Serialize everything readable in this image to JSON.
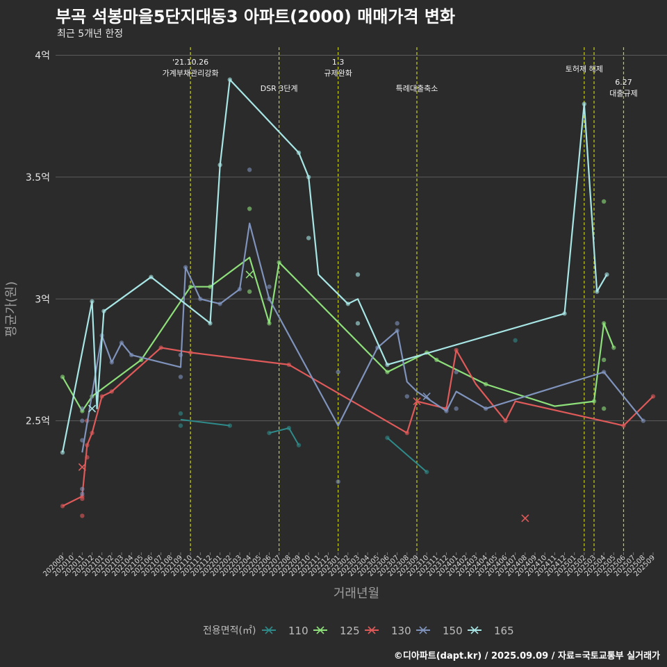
{
  "header": {
    "title": "부곡 석봉마을5단지대동3 아파트(2000) 매매가격 변화",
    "subtitle": "최근 5개년 한정"
  },
  "caption": "©디아파트(dapt.kr) / 2025.09.09 / 자료=국토교통부 실거래가",
  "chart_data": {
    "type": "line",
    "title": "부곡 석봉마을5단지대동3 아파트(2000) 매매가격 변화",
    "subtitle": "최근 5개년 한정",
    "xlabel": "거래년월",
    "ylabel": "평균가(원)",
    "categories": [
      "202009",
      "202010",
      "202011",
      "202012",
      "202101",
      "202102",
      "202103",
      "202104",
      "202105",
      "202106",
      "202107",
      "202108",
      "202109",
      "202110",
      "202111",
      "202112",
      "202201",
      "202202",
      "202203",
      "202204",
      "202205",
      "202206",
      "202207",
      "202208",
      "202209",
      "202210",
      "202211",
      "202212",
      "202301",
      "202302",
      "202303",
      "202304",
      "202305",
      "202306",
      "202307",
      "202308",
      "202309",
      "202310",
      "202311",
      "202312",
      "202401",
      "202402",
      "202403",
      "202404",
      "202405",
      "202406",
      "202407",
      "202408",
      "202409",
      "202410",
      "202411",
      "202412",
      "202501",
      "202502",
      "202503",
      "202504",
      "202505",
      "202506",
      "202507",
      "202508",
      "202509"
    ],
    "y_ticks": [
      {
        "value": 2.5,
        "label": "2.5억"
      },
      {
        "value": 3.0,
        "label": "3억"
      },
      {
        "value": 3.5,
        "label": "3.5억"
      },
      {
        "value": 4.0,
        "label": "4억"
      }
    ],
    "ylim": [
      1.96,
      4.05
    ],
    "grid": true,
    "legend": {
      "title": "전용면적(㎡)",
      "position": "bottom"
    },
    "events": [
      {
        "x": 13,
        "label_lines": [
          "'21.10.26",
          "가계부채관리강화"
        ],
        "level": "high"
      },
      {
        "x": 22,
        "label_lines": [
          "DSR 3단계"
        ],
        "level": "low"
      },
      {
        "x": 28,
        "label_lines": [
          "1.3",
          "규제완화"
        ],
        "level": "high"
      },
      {
        "x": 36,
        "label_lines": [
          "특례대출축소"
        ],
        "level": "low"
      },
      {
        "x": 53,
        "label_lines": [
          "토허제 해제"
        ],
        "level": "mid"
      },
      {
        "x": 54,
        "label_lines": [],
        "level": "none"
      },
      {
        "x": 57,
        "label_lines": [
          "6.27",
          "대출규제"
        ],
        "level": "lower"
      }
    ],
    "series": [
      {
        "name": "110",
        "color": "#2f8a8a",
        "points": [
          [
            12,
            2.505
          ],
          [
            17,
            2.48
          ],
          [
            21,
            2.45
          ],
          [
            23,
            2.47
          ],
          [
            24,
            2.4
          ],
          [
            33,
            2.43
          ],
          [
            37,
            2.29
          ]
        ],
        "segments": [
          [
            12,
            2.505,
            17,
            2.48
          ],
          [
            21,
            2.45,
            23,
            2.47
          ],
          [
            23,
            2.47,
            24,
            2.4
          ],
          [
            33,
            2.43,
            37,
            2.29
          ]
        ],
        "dots": [
          [
            12,
            2.53
          ],
          [
            12,
            2.48
          ],
          [
            17,
            2.48
          ],
          [
            21,
            2.45
          ],
          [
            23,
            2.47
          ],
          [
            24,
            2.4
          ],
          [
            33,
            2.43
          ],
          [
            37,
            2.29
          ],
          [
            46,
            2.83
          ]
        ]
      },
      {
        "name": "125",
        "color": "#8ee07a",
        "points": [
          [
            0,
            2.68
          ],
          [
            2,
            2.54
          ],
          [
            3,
            2.6
          ],
          [
            8,
            2.75
          ],
          [
            13,
            3.05
          ],
          [
            15,
            3.05
          ],
          [
            19,
            3.17
          ],
          [
            21,
            2.9
          ],
          [
            22,
            3.15
          ],
          [
            33,
            2.7
          ],
          [
            37,
            2.78
          ],
          [
            38,
            2.75
          ],
          [
            43,
            2.65
          ],
          [
            50,
            2.56
          ],
          [
            54,
            2.58
          ],
          [
            55,
            2.9
          ],
          [
            56,
            2.8
          ]
        ],
        "dots": [
          [
            0,
            2.68
          ],
          [
            2,
            2.54
          ],
          [
            3,
            2.6
          ],
          [
            8,
            2.75
          ],
          [
            13,
            3.05
          ],
          [
            15,
            3.05
          ],
          [
            19,
            3.37
          ],
          [
            19,
            3.03
          ],
          [
            21,
            2.9
          ],
          [
            22,
            3.15
          ],
          [
            33,
            2.7
          ],
          [
            37,
            2.78
          ],
          [
            38,
            2.75
          ],
          [
            43,
            2.65
          ],
          [
            54,
            2.58
          ],
          [
            55,
            3.4
          ],
          [
            55,
            2.75
          ],
          [
            55,
            2.55
          ],
          [
            55,
            2.9
          ],
          [
            56,
            2.8
          ]
        ],
        "crosses": [
          [
            19,
            3.1
          ]
        ]
      },
      {
        "name": "130",
        "color": "#e05a5a",
        "points": [
          [
            0,
            2.15
          ],
          [
            2,
            2.19
          ],
          [
            2.5,
            2.4
          ],
          [
            3,
            2.45
          ],
          [
            4,
            2.6
          ],
          [
            5,
            2.62
          ],
          [
            10,
            2.8
          ],
          [
            13,
            2.78
          ],
          [
            23,
            2.73
          ],
          [
            35,
            2.45
          ],
          [
            36,
            2.58
          ],
          [
            39,
            2.55
          ],
          [
            40,
            2.79
          ],
          [
            42,
            2.65
          ],
          [
            45,
            2.5
          ],
          [
            46,
            2.58
          ],
          [
            57,
            2.48
          ],
          [
            60,
            2.6
          ]
        ],
        "dots": [
          [
            0,
            2.15
          ],
          [
            2,
            2.19
          ],
          [
            2,
            2.18
          ],
          [
            2,
            2.11
          ],
          [
            2.5,
            2.4
          ],
          [
            2.5,
            2.35
          ],
          [
            2.5,
            2.5
          ],
          [
            3,
            2.45
          ],
          [
            4,
            2.6
          ],
          [
            5,
            2.62
          ],
          [
            10,
            2.8
          ],
          [
            13,
            2.78
          ],
          [
            23,
            2.73
          ],
          [
            35,
            2.45
          ],
          [
            39,
            2.55
          ],
          [
            40,
            2.79
          ],
          [
            45,
            2.5
          ],
          [
            57,
            2.48
          ],
          [
            60,
            2.6
          ]
        ],
        "crosses": [
          [
            2,
            2.31
          ],
          [
            36,
            2.58
          ],
          [
            47,
            2.1
          ]
        ]
      },
      {
        "name": "150",
        "color": "#7f93bc",
        "points": [
          [
            2,
            2.37
          ],
          [
            4,
            2.85
          ],
          [
            5,
            2.74
          ],
          [
            6,
            2.82
          ],
          [
            7,
            2.77
          ],
          [
            12,
            2.72
          ],
          [
            12.5,
            3.13
          ],
          [
            14,
            3.0
          ],
          [
            16,
            2.98
          ],
          [
            18,
            3.04
          ],
          [
            19,
            3.31
          ],
          [
            21,
            3.0
          ],
          [
            28,
            2.48
          ],
          [
            32,
            2.8
          ],
          [
            34,
            2.87
          ],
          [
            35,
            2.66
          ],
          [
            36,
            2.62
          ],
          [
            39,
            2.54
          ],
          [
            40,
            2.62
          ],
          [
            43,
            2.55
          ],
          [
            55,
            2.7
          ],
          [
            59,
            2.5
          ]
        ],
        "dots": [
          [
            2,
            2.55
          ],
          [
            2,
            2.5
          ],
          [
            2,
            2.42
          ],
          [
            2,
            2.22
          ],
          [
            2,
            2.2
          ],
          [
            4,
            2.85
          ],
          [
            5,
            2.74
          ],
          [
            6,
            2.82
          ],
          [
            7,
            2.77
          ],
          [
            12,
            2.77
          ],
          [
            12,
            2.68
          ],
          [
            12.5,
            3.13
          ],
          [
            14,
            3.0
          ],
          [
            16,
            2.98
          ],
          [
            18,
            3.04
          ],
          [
            19,
            3.53
          ],
          [
            21,
            3.05
          ],
          [
            21,
            3.0
          ],
          [
            28,
            2.7
          ],
          [
            28,
            2.25
          ],
          [
            32,
            2.8
          ],
          [
            34,
            2.87
          ],
          [
            34,
            2.9
          ],
          [
            35,
            2.6
          ],
          [
            39,
            2.54
          ],
          [
            40,
            2.7
          ],
          [
            40,
            2.55
          ],
          [
            43,
            2.55
          ],
          [
            55,
            2.7
          ],
          [
            59,
            2.5
          ]
        ],
        "crosses": [
          [
            37,
            2.6
          ]
        ]
      },
      {
        "name": "165",
        "color": "#a8e6e6",
        "points": [
          [
            0,
            2.37
          ],
          [
            3,
            2.99
          ],
          [
            3.5,
            2.55
          ],
          [
            4.2,
            2.95
          ],
          [
            9,
            3.09
          ],
          [
            15,
            2.9
          ],
          [
            16,
            3.55
          ],
          [
            17,
            3.9
          ],
          [
            24,
            3.6
          ],
          [
            25,
            3.5
          ],
          [
            26,
            3.1
          ],
          [
            29,
            2.98
          ],
          [
            30,
            3.0
          ],
          [
            33,
            2.73
          ],
          [
            51,
            2.94
          ],
          [
            53,
            3.8
          ],
          [
            54.3,
            3.03
          ],
          [
            55.3,
            3.1
          ]
        ],
        "dots": [
          [
            0,
            2.37
          ],
          [
            3,
            2.99
          ],
          [
            4.2,
            2.95
          ],
          [
            9,
            3.09
          ],
          [
            15,
            2.9
          ],
          [
            16,
            3.55
          ],
          [
            17,
            3.9
          ],
          [
            24,
            3.6
          ],
          [
            25,
            3.5
          ],
          [
            25,
            3.25
          ],
          [
            29,
            2.98
          ],
          [
            30,
            2.9
          ],
          [
            30,
            3.1
          ],
          [
            33,
            2.73
          ],
          [
            51,
            2.94
          ],
          [
            53,
            3.8
          ],
          [
            54.3,
            3.03
          ],
          [
            55.3,
            3.1
          ]
        ],
        "crosses": [
          [
            3,
            2.55
          ]
        ]
      }
    ]
  }
}
